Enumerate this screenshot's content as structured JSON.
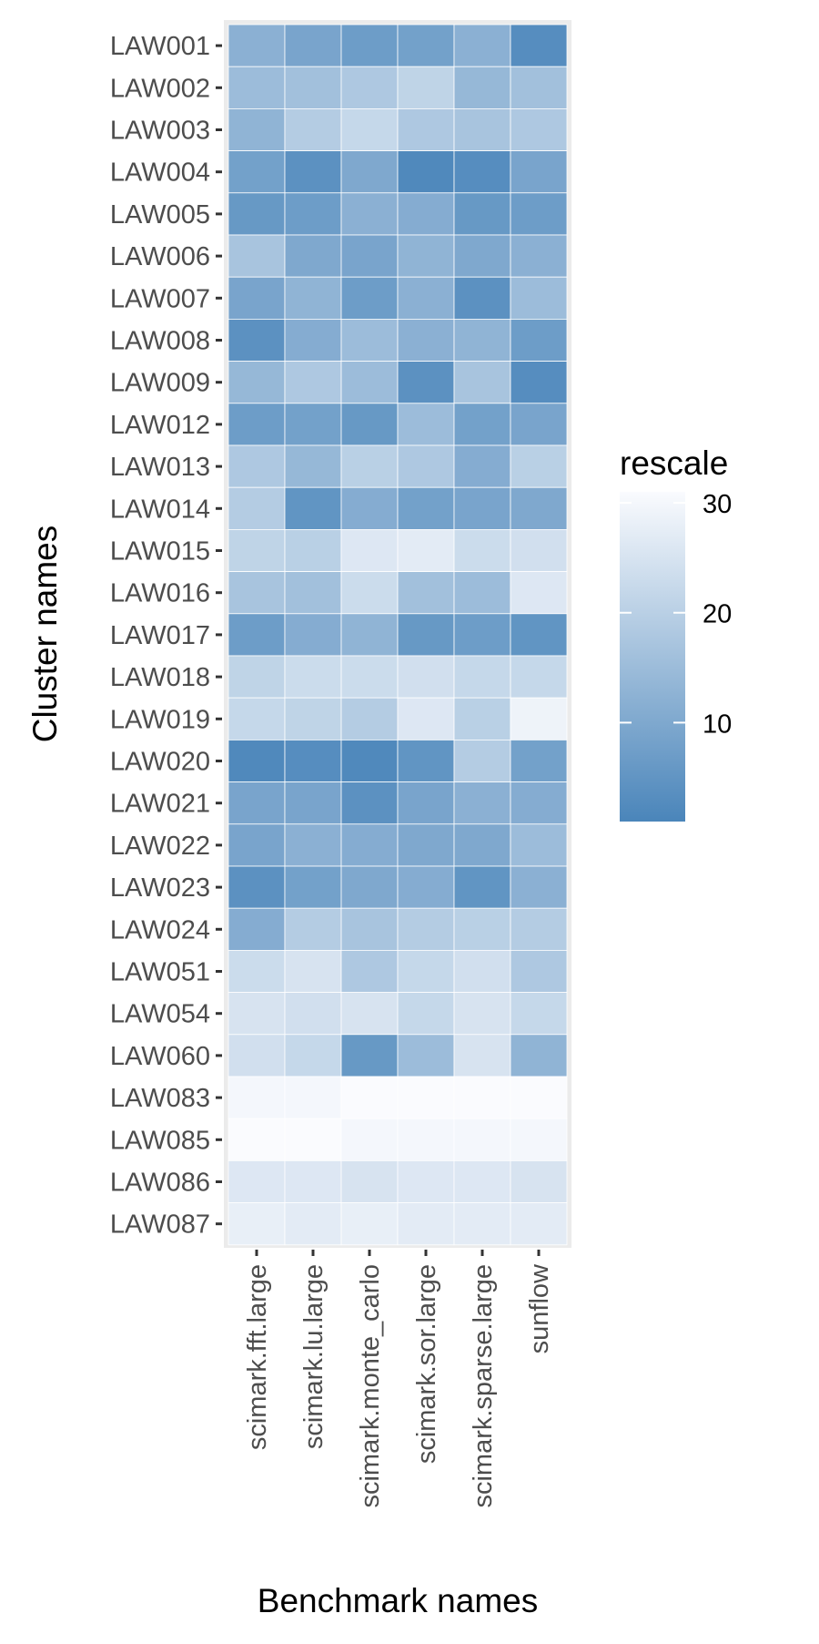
{
  "chart_data": {
    "type": "heatmap",
    "xlabel": "Benchmark names",
    "ylabel": "Cluster names",
    "x": [
      "scimark.fft.large",
      "scimark.lu.large",
      "scimark.monte_carlo",
      "scimark.sor.large",
      "scimark.sparse.large",
      "sunflow"
    ],
    "y": [
      "LAW001",
      "LAW002",
      "LAW003",
      "LAW004",
      "LAW005",
      "LAW006",
      "LAW007",
      "LAW008",
      "LAW009",
      "LAW012",
      "LAW013",
      "LAW014",
      "LAW015",
      "LAW016",
      "LAW017",
      "LAW018",
      "LAW019",
      "LAW020",
      "LAW021",
      "LAW022",
      "LAW023",
      "LAW024",
      "LAW051",
      "LAW054",
      "LAW060",
      "LAW083",
      "LAW085",
      "LAW086",
      "LAW087"
    ],
    "values": [
      [
        12,
        9,
        7,
        8,
        12,
        3
      ],
      [
        15,
        16,
        18,
        21,
        14,
        16
      ],
      [
        13,
        19,
        22,
        18,
        17,
        18
      ],
      [
        8,
        4,
        10,
        2,
        3,
        9
      ],
      [
        6,
        7,
        12,
        11,
        6,
        7
      ],
      [
        17,
        10,
        9,
        13,
        10,
        12
      ],
      [
        9,
        13,
        7,
        12,
        4,
        15
      ],
      [
        4,
        11,
        15,
        12,
        13,
        7
      ],
      [
        14,
        18,
        15,
        4,
        17,
        3
      ],
      [
        7,
        8,
        6,
        15,
        8,
        9
      ],
      [
        18,
        14,
        20,
        18,
        11,
        20
      ],
      [
        19,
        5,
        11,
        8,
        9,
        10
      ],
      [
        21,
        20,
        26,
        27,
        23,
        24
      ],
      [
        17,
        16,
        23,
        16,
        15,
        26
      ],
      [
        7,
        11,
        13,
        6,
        7,
        5
      ],
      [
        21,
        23,
        23,
        24,
        22,
        22
      ],
      [
        22,
        21,
        19,
        26,
        20,
        29
      ],
      [
        2,
        3,
        2,
        5,
        19,
        8
      ],
      [
        9,
        9,
        4,
        9,
        12,
        11
      ],
      [
        9,
        12,
        11,
        10,
        10,
        15
      ],
      [
        4,
        8,
        10,
        11,
        5,
        12
      ],
      [
        11,
        19,
        17,
        19,
        20,
        19
      ],
      [
        23,
        25,
        18,
        22,
        24,
        18
      ],
      [
        25,
        24,
        25,
        22,
        25,
        22
      ],
      [
        24,
        22,
        6,
        15,
        25,
        13
      ],
      [
        30,
        30,
        31,
        31,
        31,
        31
      ],
      [
        31,
        31,
        30,
        30,
        30,
        30
      ],
      [
        26,
        26,
        25,
        26,
        26,
        25
      ],
      [
        28,
        27,
        28,
        27,
        27,
        27
      ]
    ],
    "legend": {
      "title": "rescale",
      "breaks": [
        10,
        20,
        30
      ],
      "range": [
        1,
        31
      ],
      "low_color": "#4A85BA",
      "high_color": "#FAFBFE",
      "placement": "right"
    },
    "panel_background": "#EBEBEB",
    "grid": true
  }
}
